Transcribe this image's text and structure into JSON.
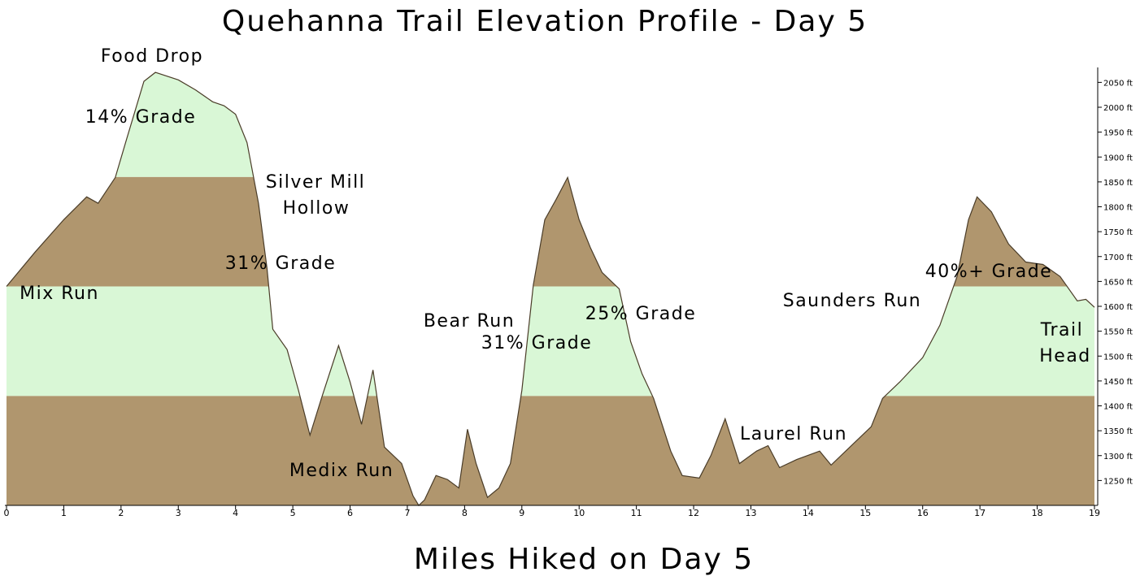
{
  "chart_data": {
    "type": "area",
    "title": "Quehanna Trail Elevation Profile - Day 5",
    "x_label": "Miles Hiked on Day 5",
    "x": [
      0,
      0.5,
      1.0,
      1.4,
      1.6,
      1.9,
      2.1,
      2.4,
      2.6,
      3.0,
      3.3,
      3.6,
      3.8,
      4.0,
      4.2,
      4.4,
      4.55,
      4.65,
      4.9,
      5.1,
      5.3,
      5.5,
      5.8,
      6.0,
      6.2,
      6.4,
      6.6,
      6.9,
      7.1,
      7.2,
      7.3,
      7.5,
      7.7,
      7.9,
      8.05,
      8.2,
      8.4,
      8.6,
      8.8,
      9.0,
      9.2,
      9.4,
      9.6,
      9.8,
      10.0,
      10.2,
      10.4,
      10.7,
      10.9,
      11.1,
      11.3,
      11.6,
      11.8,
      12.1,
      12.3,
      12.55,
      12.8,
      13.1,
      13.3,
      13.5,
      13.8,
      14.2,
      14.4,
      14.8,
      15.1,
      15.3,
      15.6,
      16.0,
      16.3,
      16.6,
      16.8,
      16.95,
      17.2,
      17.5,
      17.8,
      18.1,
      18.4,
      18.7,
      18.85,
      19.0
    ],
    "values": [
      1640,
      1709,
      1774,
      1820,
      1807,
      1859,
      1937,
      2052,
      2070,
      2055,
      2035,
      2011,
      2003,
      1986,
      1929,
      1807,
      1676,
      1554,
      1513,
      1431,
      1341,
      1415,
      1521,
      1448,
      1363,
      1472,
      1317,
      1284,
      1219,
      1200,
      1211,
      1260,
      1252,
      1235,
      1353,
      1284,
      1216,
      1235,
      1284,
      1431,
      1643,
      1774,
      1815,
      1859,
      1774,
      1717,
      1668,
      1635,
      1529,
      1464,
      1415,
      1309,
      1260,
      1255,
      1300,
      1374,
      1284,
      1309,
      1320,
      1276,
      1292,
      1309,
      1281,
      1325,
      1358,
      1415,
      1448,
      1497,
      1562,
      1660,
      1774,
      1820,
      1790,
      1725,
      1689,
      1684,
      1660,
      1611,
      1614,
      1598
    ],
    "band_edges": [
      1420,
      1640,
      1860
    ],
    "band_colors": [
      "#b0966e",
      "#d9f7d6",
      "#b0966e",
      "#d9f7d6"
    ],
    "xlim": [
      0,
      19
    ],
    "ylim": [
      1200,
      2080
    ],
    "xticks": [
      0,
      1,
      2,
      3,
      4,
      5,
      6,
      7,
      8,
      9,
      10,
      11,
      12,
      13,
      14,
      15,
      16,
      17,
      18,
      19
    ],
    "yticks": [
      {
        "value": 1250,
        "label": "1250 ft"
      },
      {
        "value": 1300,
        "label": "1300 ft"
      },
      {
        "value": 1350,
        "label": "1350 ft"
      },
      {
        "value": 1400,
        "label": "1400 ft"
      },
      {
        "value": 1450,
        "label": "1450 ft"
      },
      {
        "value": 1500,
        "label": "1500 ft"
      },
      {
        "value": 1550,
        "label": "1550 ft"
      },
      {
        "value": 1600,
        "label": "1600 ft"
      },
      {
        "value": 1650,
        "label": "1650 ft"
      },
      {
        "value": 1700,
        "label": "1700 ft"
      },
      {
        "value": 1750,
        "label": "1750 ft"
      },
      {
        "value": 1800,
        "label": "1800 ft"
      },
      {
        "value": 1850,
        "label": "1850 ft"
      },
      {
        "value": 1900,
        "label": "1900 ft"
      },
      {
        "value": 1950,
        "label": "1950 ft"
      },
      {
        "value": 2000,
        "label": "2000 ft"
      },
      {
        "value": 2050,
        "label": "2050 ft"
      }
    ],
    "annotations": [
      "Food Drop",
      "14% Grade",
      "Silver Mill",
      "Hollow",
      "31% Grade",
      "Mix Run",
      "Medix Run",
      "Bear Run",
      "31% Grade",
      "25% Grade",
      "Saunders Run",
      "Laurel Run",
      "40%+ Grade",
      "Trail",
      "Head"
    ]
  }
}
